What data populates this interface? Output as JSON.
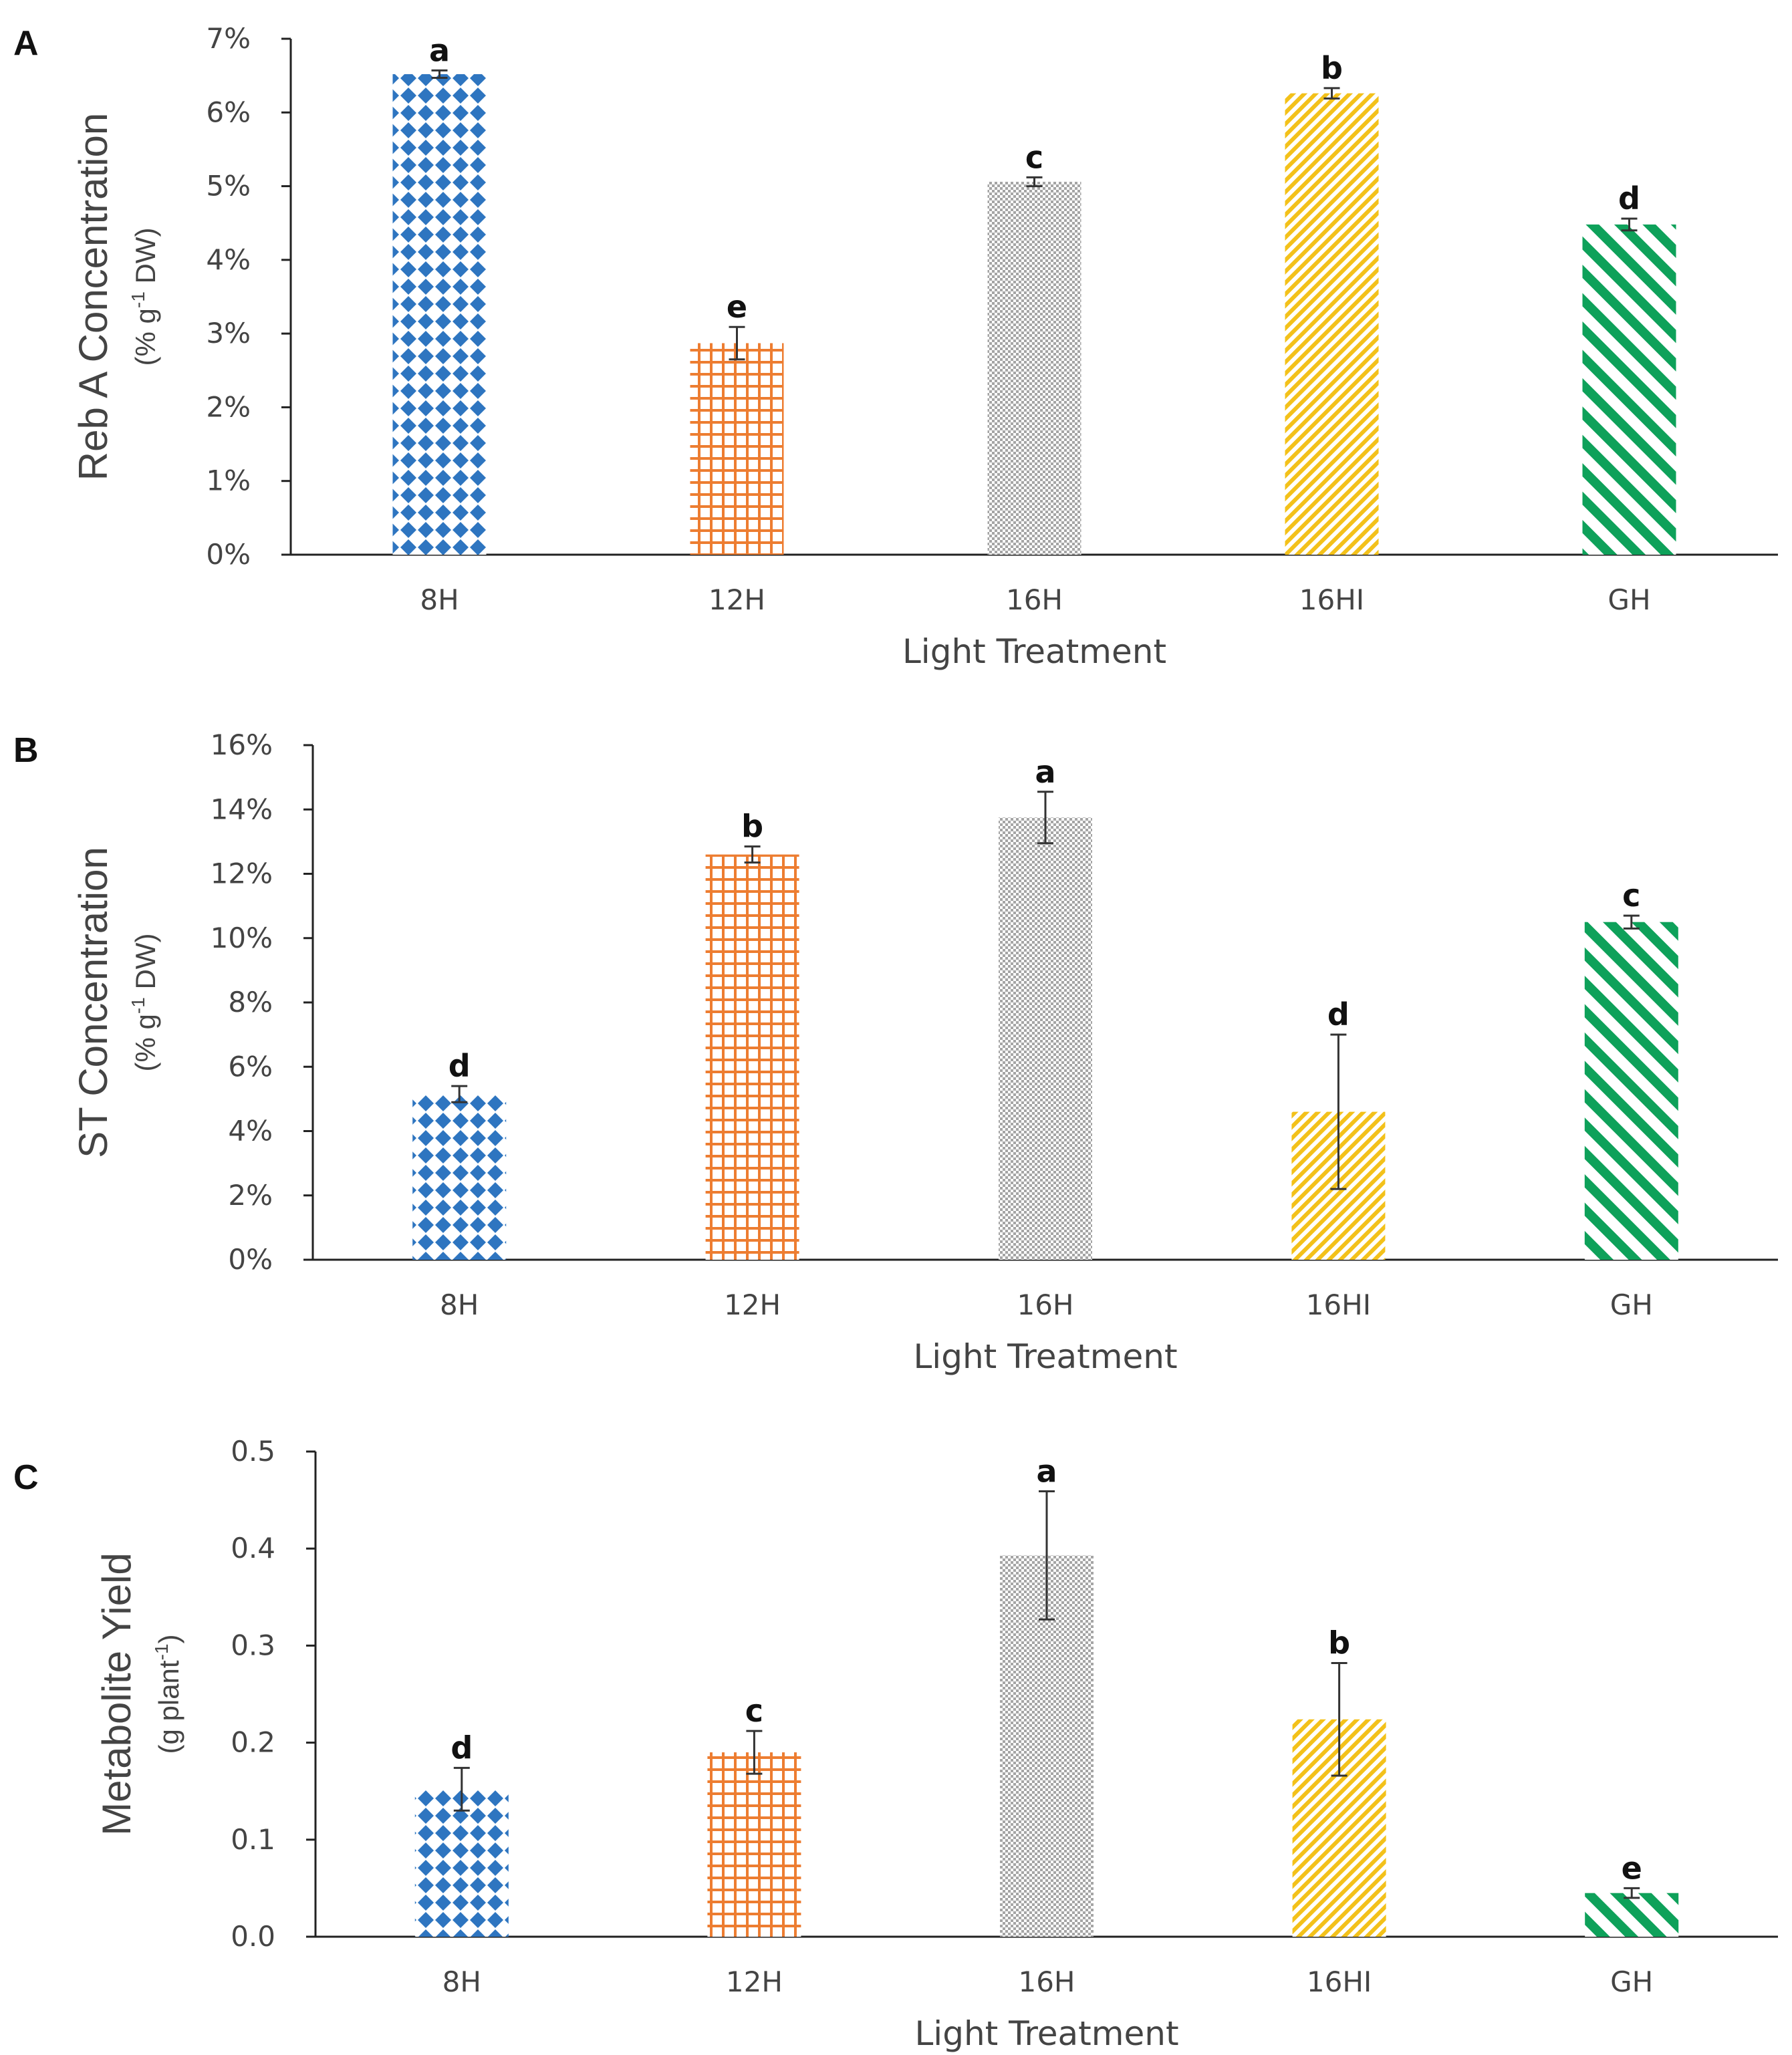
{
  "chart_data": [
    {
      "panel": "A",
      "type": "bar",
      "categories": [
        "8H",
        "12H",
        "16H",
        "16HI",
        "GH"
      ],
      "values": [
        6.52,
        2.87,
        5.06,
        6.26,
        4.48
      ],
      "errors": [
        0.05,
        0.22,
        0.06,
        0.07,
        0.08
      ],
      "significance": [
        "a",
        "e",
        "c",
        "b",
        "d"
      ],
      "xlabel": "Light Treatment",
      "ylabel": "Reb A Concentration",
      "ylabel_unit_prefix": "(% g",
      "ylabel_unit_sup": "-1",
      "ylabel_unit_suffix": " DW)",
      "ylim": [
        0,
        7
      ],
      "ytick_labels": [
        "0%",
        "1%",
        "2%",
        "3%",
        "4%",
        "5%",
        "6%",
        "7%"
      ]
    },
    {
      "panel": "B",
      "type": "bar",
      "categories": [
        "8H",
        "12H",
        "16H",
        "16HI",
        "GH"
      ],
      "values": [
        5.15,
        12.6,
        13.75,
        4.6,
        10.5
      ],
      "errors": [
        0.25,
        0.25,
        0.8,
        2.4,
        0.2
      ],
      "significance": [
        "d",
        "b",
        "a",
        "d",
        "c"
      ],
      "xlabel": "Light Treatment",
      "ylabel": "ST Concentration",
      "ylabel_unit_prefix": "(% g",
      "ylabel_unit_sup": "-1",
      "ylabel_unit_suffix": " DW)",
      "ylim": [
        0,
        16
      ],
      "ytick_labels": [
        "0%",
        "2%",
        "4%",
        "6%",
        "8%",
        "10%",
        "12%",
        "14%",
        "16%"
      ]
    },
    {
      "panel": "C",
      "type": "bar",
      "categories": [
        "8H",
        "12H",
        "16H",
        "16HI",
        "GH"
      ],
      "values": [
        0.152,
        0.19,
        0.393,
        0.224,
        0.045
      ],
      "errors": [
        0.022,
        0.022,
        0.066,
        0.058,
        0.005
      ],
      "significance": [
        "d",
        "c",
        "a",
        "b",
        "e"
      ],
      "xlabel": "Light Treatment",
      "ylabel": "Metabolite Yield",
      "ylabel_unit_prefix": "(g plant",
      "ylabel_unit_sup": "-1",
      "ylabel_unit_suffix": ")",
      "ylim": [
        0,
        0.5
      ],
      "ytick_labels": [
        "0.0",
        "0.1",
        "0.2",
        "0.3",
        "0.4",
        "0.5"
      ]
    }
  ],
  "series_colors": {
    "blue": "#2e75c0",
    "orange": "#ed7d31",
    "gray": "#a5a5a5",
    "yellow": "#f3c11a",
    "green": "#0ea15a"
  },
  "series_patterns": [
    "diamond-lattice",
    "grid",
    "checker",
    "diagonal-fine",
    "diagonal-wide"
  ]
}
